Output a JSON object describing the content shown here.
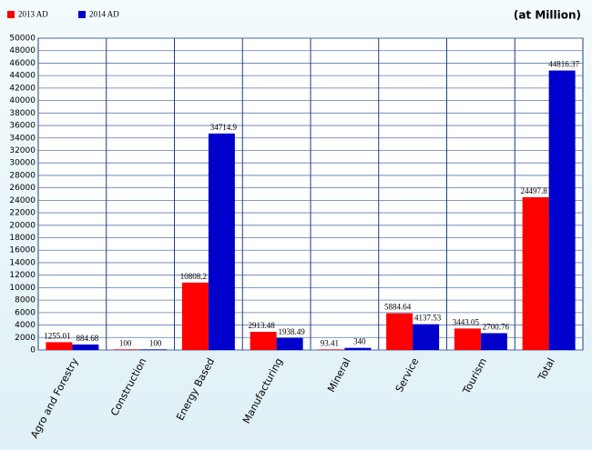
{
  "chart_data": {
    "type": "bar",
    "annotation": "(at Million)",
    "categories": [
      "Agro and Forestry",
      "Construction",
      "Energy Based",
      "Manufacturing",
      "Mineral",
      "Service",
      "Tourism",
      "Total"
    ],
    "series": [
      {
        "name": "2013 AD",
        "color": "#ff0000",
        "values": [
          1255.01,
          100,
          10808.2,
          2913.48,
          93.41,
          5884.64,
          3443.05,
          24497.8
        ]
      },
      {
        "name": "2014 AD",
        "color": "#0000cc",
        "values": [
          884.68,
          100,
          34714.9,
          1938.49,
          340,
          4137.53,
          2700.76,
          44816.37
        ]
      }
    ],
    "ylim": [
      0,
      50000
    ],
    "yticks": [
      0,
      2000,
      4000,
      6000,
      8000,
      10000,
      12000,
      14000,
      16000,
      18000,
      20000,
      22000,
      24000,
      26000,
      28000,
      30000,
      32000,
      34000,
      36000,
      38000,
      40000,
      42000,
      44000,
      46000,
      48000,
      50000
    ],
    "grid": true
  }
}
